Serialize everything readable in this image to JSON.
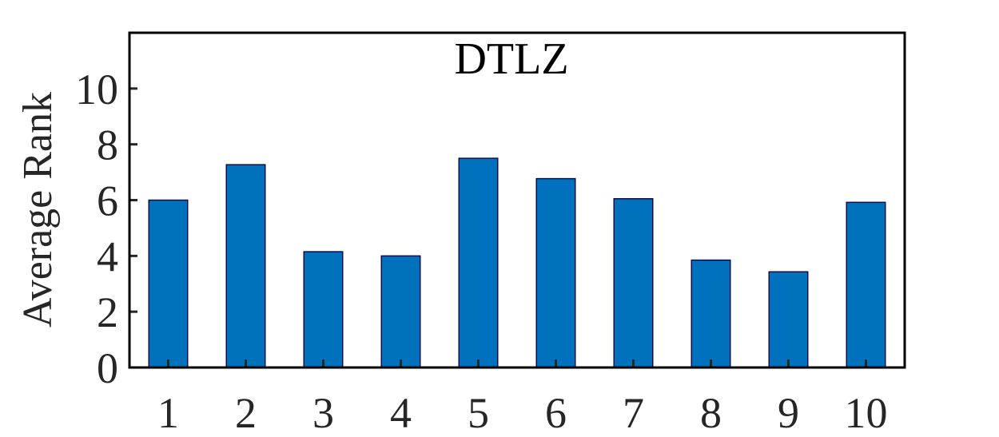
{
  "chart_data": {
    "type": "bar",
    "title": "DTLZ",
    "xlabel": "",
    "ylabel": "Average Rank",
    "categories": [
      "1",
      "2",
      "3",
      "4",
      "5",
      "6",
      "7",
      "8",
      "9",
      "10"
    ],
    "values": [
      6.0,
      7.27,
      4.15,
      4.0,
      7.5,
      6.77,
      6.05,
      3.85,
      3.43,
      5.92
    ],
    "ylim": [
      0,
      12
    ],
    "yticks": [
      0,
      2,
      4,
      6,
      8,
      10
    ],
    "grid": false,
    "legend": "none",
    "bar_color": "#0072BD",
    "bar_edge_color": "#0b0b4a"
  }
}
